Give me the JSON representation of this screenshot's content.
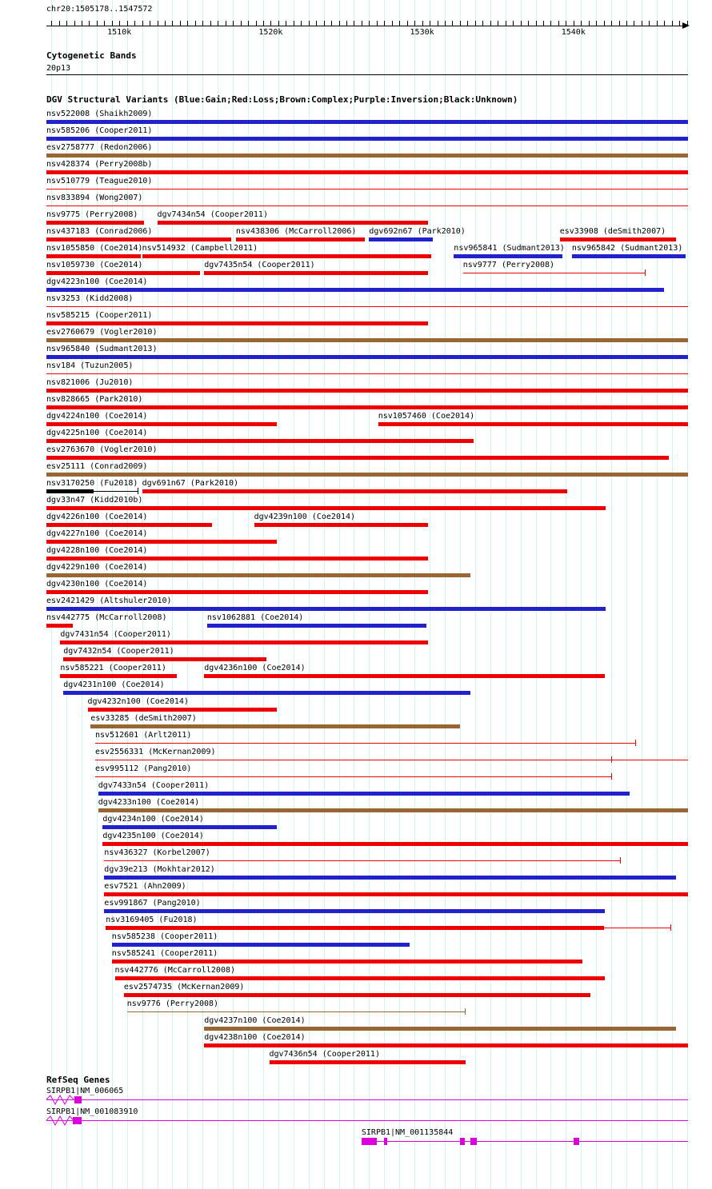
{
  "labels": {
    "region": "chr20:1505178..1547572",
    "cytobands_header": "Cytogenetic Bands",
    "cytoband": "20p13",
    "refseq_header": "RefSeq Genes"
  },
  "chart_data": {
    "type": "table",
    "subtype": "genome-browser-tracks",
    "title": "DGV Structural Variants (Blue:Gain;Red:Loss;Brown:Complex;Purple:Inversion;Black:Unknown)",
    "x_axis": {
      "min": 1505178,
      "max": 1547572,
      "minor_tick": 500,
      "grid_start": 1505500,
      "grid_step": 1000,
      "ticks": [
        {
          "bp": 1510000,
          "label": "1510k"
        },
        {
          "bp": 1520000,
          "label": "1520k"
        },
        {
          "bp": 1530000,
          "label": "1530k"
        },
        {
          "bp": 1540000,
          "label": "1540k"
        }
      ]
    },
    "class_colors": {
      "gain": "#2222cc",
      "loss": "#ee0000",
      "complex": "#996633",
      "inversion": "#7d007d",
      "unknown": "#000000"
    },
    "gene_color": "#dd00dd",
    "grid_color": "#ccf5f5",
    "variant_rows": [
      [
        {
          "id": "nsv522008",
          "study": "Shaikh2009",
          "cls": "gain",
          "style": "bar",
          "start": 1505178,
          "end": 1547572
        }
      ],
      [
        {
          "id": "nsv585206",
          "study": "Cooper2011",
          "cls": "gain",
          "style": "bar",
          "start": 1505178,
          "end": 1547572
        }
      ],
      [
        {
          "id": "esv2758777",
          "study": "Redon2006",
          "cls": "complex",
          "style": "bar",
          "start": 1505178,
          "end": 1547572
        }
      ],
      [
        {
          "id": "nsv428374",
          "study": "Perry2008b",
          "cls": "loss",
          "style": "bar",
          "start": 1505178,
          "end": 1547572
        }
      ],
      [
        {
          "id": "nsv510779",
          "study": "Teague2010",
          "cls": "loss",
          "style": "line",
          "start": 1505178,
          "end": 1547572
        }
      ],
      [
        {
          "id": "nsv833894",
          "study": "Wong2007",
          "cls": "loss",
          "style": "line",
          "start": 1505178,
          "end": 1547572
        }
      ],
      [
        {
          "id": "nsv9775",
          "study": "Perry2008",
          "cls": "loss",
          "style": "bar",
          "start": 1505178,
          "end": 1511600
        },
        {
          "id": "dgv7434n54",
          "study": "Cooper2011",
          "cls": "loss",
          "style": "bar",
          "start": 1512500,
          "end": 1530400
        }
      ],
      [
        {
          "id": "nsv437183",
          "study": "Conrad2006",
          "cls": "loss",
          "style": "bar",
          "start": 1505178,
          "end": 1517400
        },
        {
          "id": "nsv438306",
          "study": "McCarroll2006",
          "cls": "loss",
          "style": "bar",
          "start": 1517700,
          "end": 1526200
        },
        {
          "id": "dgv692n67",
          "study": "Park2010",
          "cls": "gain",
          "style": "bar",
          "start": 1526500,
          "end": 1530700
        },
        {
          "id": "esv33908",
          "study": "deSmith2007",
          "cls": "loss",
          "style": "bar",
          "start": 1539100,
          "end": 1546800
        }
      ],
      [
        {
          "id": "nsv1055850",
          "study": "Coe2014",
          "cls": "loss",
          "style": "bar",
          "start": 1505178,
          "end": 1511400
        },
        {
          "id": "nsv514932",
          "study": "Campbell2011",
          "cls": "loss",
          "style": "bar",
          "start": 1511500,
          "end": 1530600
        },
        {
          "id": "nsv965841",
          "study": "Sudmant2013",
          "cls": "gain",
          "style": "bar",
          "start": 1532100,
          "end": 1539300
        },
        {
          "id": "nsv965842",
          "study": "Sudmant2013",
          "cls": "gain",
          "style": "bar",
          "start": 1539900,
          "end": 1547400
        }
      ],
      [
        {
          "id": "nsv1059730",
          "study": "Coe2014",
          "cls": "loss",
          "style": "bar",
          "start": 1505178,
          "end": 1515300
        },
        {
          "id": "dgv7435n54",
          "study": "Cooper2011",
          "cls": "loss",
          "style": "bar",
          "start": 1515600,
          "end": 1530400
        },
        {
          "id": "nsv9777",
          "study": "Perry2008",
          "cls": "loss",
          "style": "line",
          "start": 1532700,
          "end": 1544700,
          "ticks": [
            1544700
          ]
        }
      ],
      [
        {
          "id": "dgv4223n100",
          "study": "Coe2014",
          "cls": "gain",
          "style": "bar",
          "start": 1505178,
          "end": 1546000
        }
      ],
      [
        {
          "id": "nsv3253",
          "study": "Kidd2008",
          "cls": "loss",
          "style": "line",
          "start": 1505178,
          "end": 1547572
        }
      ],
      [
        {
          "id": "nsv585215",
          "study": "Cooper2011",
          "cls": "loss",
          "style": "bar",
          "start": 1505178,
          "end": 1530400
        }
      ],
      [
        {
          "id": "esv2760679",
          "study": "Vogler2010",
          "cls": "complex",
          "style": "bar",
          "start": 1505178,
          "end": 1547572
        }
      ],
      [
        {
          "id": "nsv965840",
          "study": "Sudmant2013",
          "cls": "gain",
          "style": "bar",
          "start": 1505178,
          "end": 1547572
        }
      ],
      [
        {
          "id": "nsv184",
          "study": "Tuzun2005",
          "cls": "loss",
          "style": "line",
          "start": 1505178,
          "end": 1547572
        }
      ],
      [
        {
          "id": "nsv821006",
          "study": "Ju2010",
          "cls": "loss",
          "style": "bar",
          "start": 1505178,
          "end": 1547572
        }
      ],
      [
        {
          "id": "nsv828665",
          "study": "Park2010",
          "cls": "loss",
          "style": "bar",
          "start": 1505178,
          "end": 1547572
        }
      ],
      [
        {
          "id": "dgv4224n100",
          "study": "Coe2014",
          "cls": "loss",
          "style": "bar",
          "start": 1505178,
          "end": 1520400
        },
        {
          "id": "nsv1057460",
          "study": "Coe2014",
          "cls": "loss",
          "style": "bar",
          "start": 1527100,
          "end": 1547572
        }
      ],
      [
        {
          "id": "dgv4225n100",
          "study": "Coe2014",
          "cls": "loss",
          "style": "bar",
          "start": 1505178,
          "end": 1533400
        }
      ],
      [
        {
          "id": "esv2763670",
          "study": "Vogler2010",
          "cls": "loss",
          "style": "bar",
          "start": 1505178,
          "end": 1546300
        }
      ],
      [
        {
          "id": "esv25111",
          "study": "Conrad2009",
          "cls": "complex",
          "style": "bar",
          "start": 1505178,
          "end": 1547572
        }
      ],
      [
        {
          "id": "nsv3170250",
          "study": "Fu2018",
          "cls": "unknown",
          "style": "bar",
          "start": 1505178,
          "end": 1508300,
          "ext": 1511200,
          "ticks": [
            1511200
          ]
        },
        {
          "id": "dgv691n67",
          "study": "Park2010",
          "cls": "loss",
          "style": "bar",
          "start": 1511500,
          "end": 1539600
        }
      ],
      [
        {
          "id": "dgv33n47",
          "study": "Kidd2010b",
          "cls": "loss",
          "style": "bar",
          "start": 1505178,
          "end": 1542100
        }
      ],
      [
        {
          "id": "dgv4226n100",
          "study": "Coe2014",
          "cls": "loss",
          "style": "bar",
          "start": 1505178,
          "end": 1516100
        },
        {
          "id": "dgv4239n100",
          "study": "Coe2014",
          "cls": "loss",
          "style": "bar",
          "start": 1518900,
          "end": 1530400
        }
      ],
      [
        {
          "id": "dgv4227n100",
          "study": "Coe2014",
          "cls": "loss",
          "style": "bar",
          "start": 1505178,
          "end": 1520400
        }
      ],
      [
        {
          "id": "dgv4228n100",
          "study": "Coe2014",
          "cls": "loss",
          "style": "bar",
          "start": 1505178,
          "end": 1530400
        }
      ],
      [
        {
          "id": "dgv4229n100",
          "study": "Coe2014",
          "cls": "complex",
          "style": "bar",
          "start": 1505178,
          "end": 1533200
        }
      ],
      [
        {
          "id": "dgv4230n100",
          "study": "Coe2014",
          "cls": "loss",
          "style": "bar",
          "start": 1505178,
          "end": 1530400
        }
      ],
      [
        {
          "id": "esv2421429",
          "study": "Altshuler2010",
          "cls": "gain",
          "style": "bar",
          "start": 1505178,
          "end": 1542100
        }
      ],
      [
        {
          "id": "nsv442775",
          "study": "McCarroll2008",
          "cls": "loss",
          "style": "bar",
          "start": 1505178,
          "end": 1506900
        },
        {
          "id": "nsv1062881",
          "study": "Coe2014",
          "cls": "gain",
          "style": "bar",
          "start": 1515800,
          "end": 1530300
        }
      ],
      [
        {
          "id": "dgv7431n54",
          "study": "Cooper2011",
          "cls": "loss",
          "style": "bar",
          "start": 1506100,
          "end": 1530400
        }
      ],
      [
        {
          "id": "dgv7432n54",
          "study": "Cooper2011",
          "cls": "loss",
          "style": "bar",
          "start": 1506300,
          "end": 1519700
        }
      ],
      [
        {
          "id": "nsv585221",
          "study": "Cooper2011",
          "cls": "loss",
          "style": "bar",
          "start": 1506100,
          "end": 1513800
        },
        {
          "id": "dgv4236n100",
          "study": "Coe2014",
          "cls": "loss",
          "style": "bar",
          "start": 1515600,
          "end": 1542100
        }
      ],
      [
        {
          "id": "dgv4231n100",
          "study": "Coe2014",
          "cls": "gain",
          "style": "bar",
          "start": 1506300,
          "end": 1533200
        }
      ],
      [
        {
          "id": "dgv4232n100",
          "study": "Coe2014",
          "cls": "loss",
          "style": "bar",
          "start": 1507900,
          "end": 1520400
        }
      ],
      [
        {
          "id": "esv33285",
          "study": "deSmith2007",
          "cls": "complex",
          "style": "bar",
          "start": 1508100,
          "end": 1532500
        }
      ],
      [
        {
          "id": "nsv512601",
          "study": "Arlt2011",
          "cls": "loss",
          "style": "line",
          "start": 1508400,
          "end": 1544100,
          "ticks": [
            1544100
          ]
        }
      ],
      [
        {
          "id": "esv2556331",
          "study": "McKernan2009",
          "cls": "loss",
          "style": "line",
          "start": 1508400,
          "end": 1547572,
          "ticks": [
            1542500
          ]
        }
      ],
      [
        {
          "id": "esv995112",
          "study": "Pang2010",
          "cls": "loss",
          "style": "line",
          "start": 1508400,
          "end": 1542500,
          "ticks": [
            1542500
          ]
        }
      ],
      [
        {
          "id": "dgv7433n54",
          "study": "Cooper2011",
          "cls": "gain",
          "style": "bar",
          "start": 1508600,
          "end": 1543700
        }
      ],
      [
        {
          "id": "dgv4233n100",
          "study": "Coe2014",
          "cls": "complex",
          "style": "bar",
          "start": 1508600,
          "end": 1547572
        }
      ],
      [
        {
          "id": "dgv4234n100",
          "study": "Coe2014",
          "cls": "gain",
          "style": "bar",
          "start": 1508900,
          "end": 1520400
        }
      ],
      [
        {
          "id": "dgv4235n100",
          "study": "Coe2014",
          "cls": "loss",
          "style": "bar",
          "start": 1508900,
          "end": 1547572
        }
      ],
      [
        {
          "id": "nsv436327",
          "study": "Korbel2007",
          "cls": "loss",
          "style": "line",
          "start": 1509000,
          "end": 1543100,
          "ticks": [
            1543100
          ]
        }
      ],
      [
        {
          "id": "dgv39e213",
          "study": "Mokhtar2012",
          "cls": "gain",
          "style": "bar",
          "start": 1509000,
          "end": 1546800
        }
      ],
      [
        {
          "id": "esv7521",
          "study": "Ahn2009",
          "cls": "loss",
          "style": "bar",
          "start": 1509000,
          "end": 1547572
        }
      ],
      [
        {
          "id": "esv991867",
          "study": "Pang2010",
          "cls": "gain",
          "style": "bar",
          "start": 1509000,
          "end": 1542100
        }
      ],
      [
        {
          "id": "nsv3169405",
          "study": "Fu2018",
          "cls": "loss",
          "style": "bar",
          "start": 1509100,
          "end": 1542000,
          "ext": 1546400,
          "ticks": [
            1546400
          ]
        }
      ],
      [
        {
          "id": "nsv585238",
          "study": "Cooper2011",
          "cls": "gain",
          "style": "bar",
          "start": 1509500,
          "end": 1529200
        }
      ],
      [
        {
          "id": "nsv585241",
          "study": "Cooper2011",
          "cls": "loss",
          "style": "bar",
          "start": 1509500,
          "end": 1540600
        }
      ],
      [
        {
          "id": "nsv442776",
          "study": "McCarroll2008",
          "cls": "loss",
          "style": "bar",
          "start": 1509700,
          "end": 1542100
        }
      ],
      [
        {
          "id": "esv2574735",
          "study": "McKernan2009",
          "cls": "loss",
          "style": "bar",
          "start": 1510300,
          "end": 1541100
        }
      ],
      [
        {
          "id": "nsv9776",
          "study": "Perry2008",
          "cls": "complex",
          "style": "line",
          "start": 1510500,
          "end": 1532800,
          "ticks": [
            1532800
          ]
        }
      ],
      [
        {
          "id": "dgv4237n100",
          "study": "Coe2014",
          "cls": "complex",
          "style": "bar",
          "start": 1515600,
          "end": 1546800
        }
      ],
      [
        {
          "id": "dgv4238n100",
          "study": "Coe2014",
          "cls": "loss",
          "style": "bar",
          "start": 1515600,
          "end": 1547572
        }
      ],
      [
        {
          "id": "dgv7436n54",
          "study": "Cooper2011",
          "cls": "loss",
          "style": "bar",
          "start": 1519900,
          "end": 1532900
        }
      ]
    ],
    "genes": [
      {
        "label": "SIRPB1|NM_006065",
        "label_bp": 1505178,
        "line": [
          1505178,
          1547572
        ],
        "zigzag_left": true,
        "exons": [
          [
            1507000,
            1507500
          ]
        ]
      },
      {
        "label": "SIRPB1|NM_001083910",
        "label_bp": 1505178,
        "line": [
          1505178,
          1547572
        ],
        "zigzag_left": true,
        "exons": [
          [
            1506900,
            1507500
          ]
        ]
      },
      {
        "label": "SIRPB1|NM_001135844",
        "label_bp": 1526000,
        "line": [
          1526000,
          1547572
        ],
        "zigzag_left": false,
        "exons": [
          [
            1526000,
            1527000
          ],
          [
            1527500,
            1527700
          ],
          [
            1532500,
            1532800
          ],
          [
            1533200,
            1533600
          ],
          [
            1540000,
            1540400
          ]
        ]
      }
    ]
  }
}
